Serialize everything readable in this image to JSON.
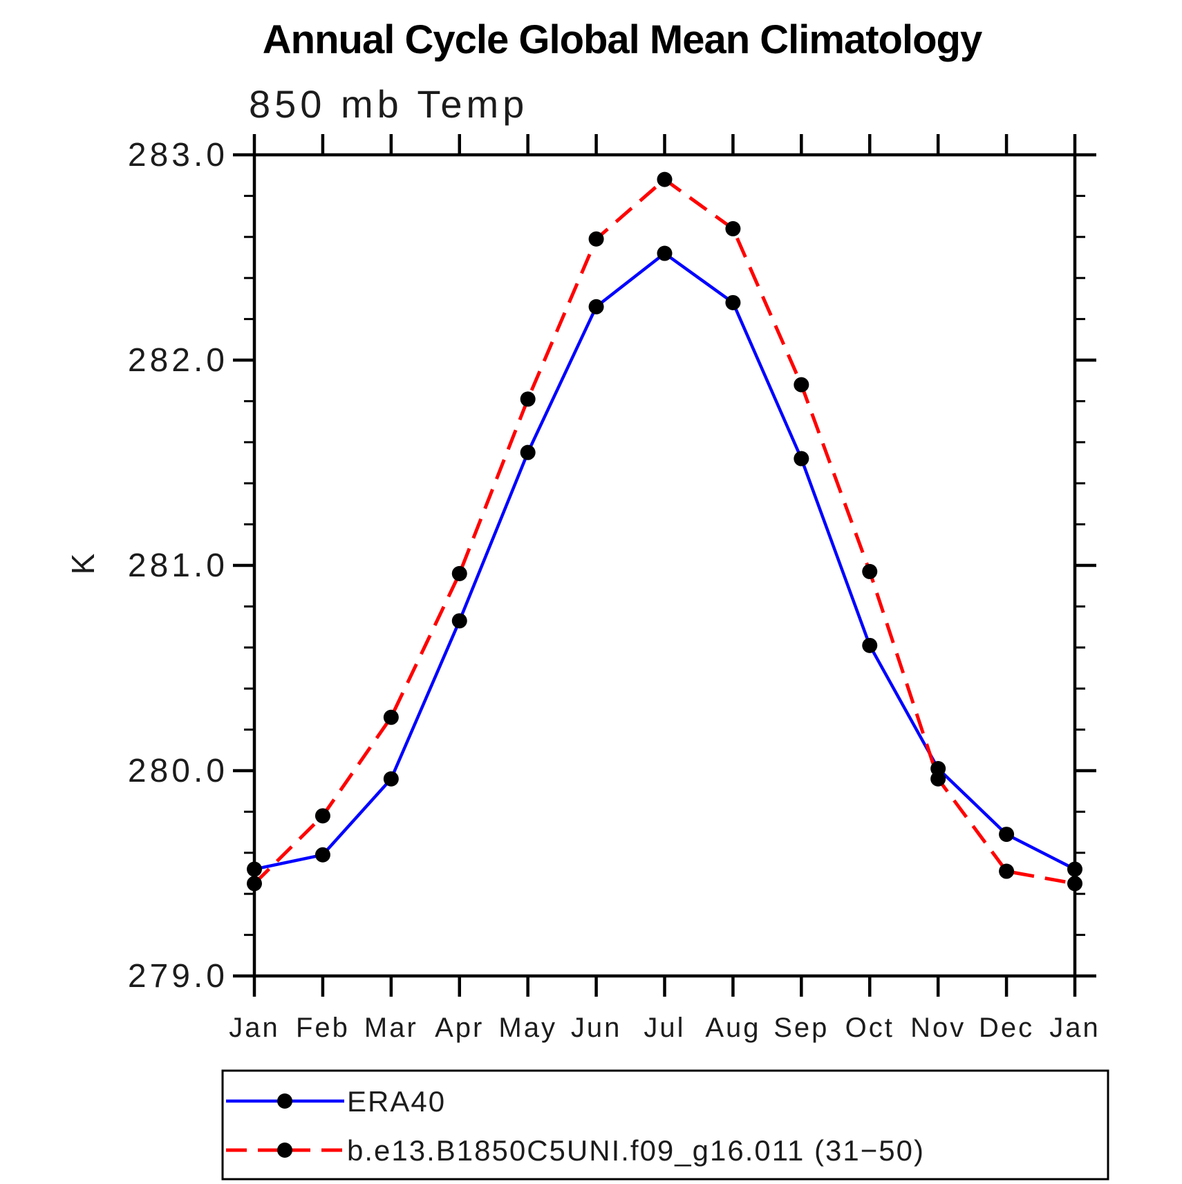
{
  "chart_data": {
    "type": "line",
    "title": "Annual Cycle Global Mean Climatology",
    "subtitle": "850 mb Temp",
    "xlabel": "",
    "ylabel": "K",
    "categories": [
      "Jan",
      "Feb",
      "Mar",
      "Apr",
      "May",
      "Jun",
      "Jul",
      "Aug",
      "Sep",
      "Oct",
      "Nov",
      "Dec",
      "Jan"
    ],
    "ylim": [
      279.0,
      283.0
    ],
    "yticks": [
      279.0,
      280.0,
      281.0,
      282.0,
      283.0
    ],
    "ytick_labels": [
      "279.0",
      "280.0",
      "281.0",
      "282.0",
      "283.0"
    ],
    "y_minor_tick_interval": 0.2,
    "grid": false,
    "legend_position": "bottom-left",
    "marker_color": "#000000",
    "series": [
      {
        "name": "ERA40",
        "color": "#0000ff",
        "style": "solid",
        "marker": "circle",
        "values": [
          279.52,
          279.59,
          279.96,
          280.73,
          281.55,
          282.26,
          282.52,
          282.28,
          281.52,
          280.61,
          280.01,
          279.69,
          279.52
        ]
      },
      {
        "name": "b.e13.B1850C5UNI.f09_g16.011 (31−50)",
        "color": "#ff0000",
        "style": "dashed",
        "marker": "circle",
        "values": [
          279.45,
          279.78,
          280.26,
          280.96,
          281.81,
          282.59,
          282.88,
          282.64,
          281.88,
          280.97,
          279.96,
          279.51,
          279.45
        ]
      }
    ]
  }
}
